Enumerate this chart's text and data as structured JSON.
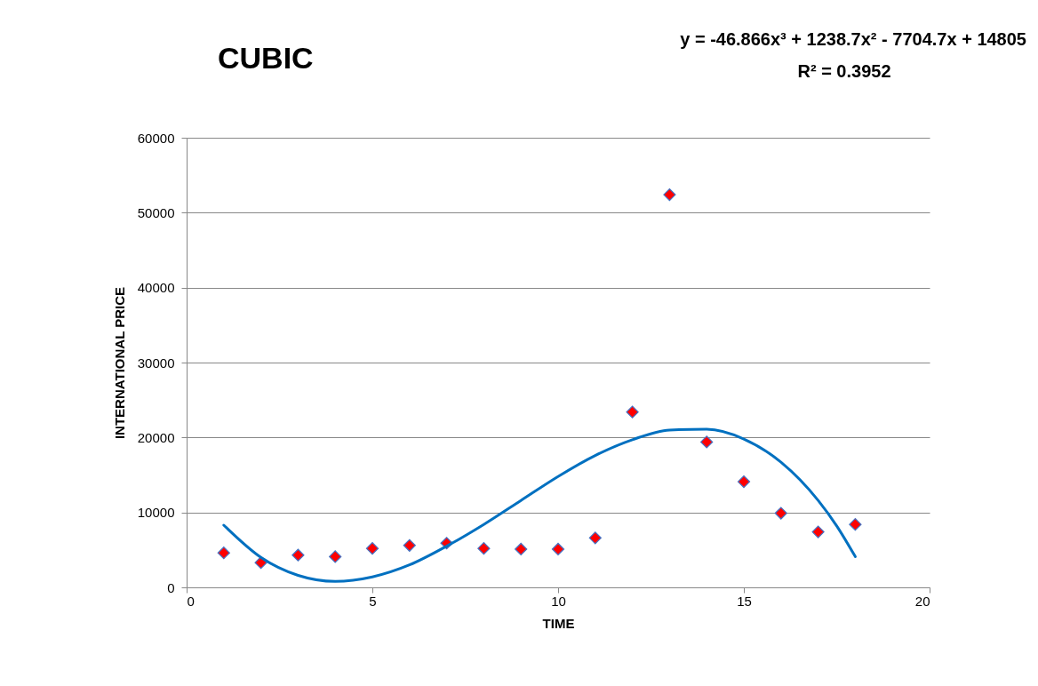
{
  "chart_data": {
    "type": "scatter",
    "title": "CUBIC",
    "xlabel": "TIME",
    "ylabel": "INTERNATIONAL PRICE",
    "annotations": [
      "y = -46.866x³ + 1238.7x² - 7704.7x + 14805",
      "R² = 0.3952"
    ],
    "xlim": [
      0,
      20
    ],
    "xticks": [
      0,
      5,
      10,
      15,
      20
    ],
    "ylim": [
      0,
      60000
    ],
    "yticks": [
      0,
      10000,
      20000,
      30000,
      40000,
      50000,
      60000
    ],
    "grid": "y",
    "series": [
      {
        "color": "#ff0000",
        "marker": "diamond",
        "x": [
          1,
          2,
          3,
          4,
          5,
          6,
          7,
          8,
          9,
          10,
          11,
          12,
          13,
          14,
          15,
          16,
          17,
          18
        ],
        "values": [
          4600,
          3300,
          4300,
          4100,
          5200,
          5600,
          5900,
          5200,
          5100,
          5100,
          6600,
          23400,
          52400,
          19400,
          14100,
          9900,
          7400,
          8400
        ]
      },
      {
        "type": "line",
        "color": "#0070c0",
        "line_style": "solid",
        "marker": "none",
        "x": [
          1,
          2,
          3,
          4,
          5,
          6,
          7,
          8,
          9,
          10,
          11,
          12,
          13,
          14,
          15,
          16,
          17,
          17.5,
          18
        ],
        "values": [
          8300,
          4000,
          1600,
          800,
          1400,
          3000,
          5500,
          8400,
          11600,
          14800,
          17600,
          19700,
          21000,
          21100,
          19800,
          16700,
          11600,
          8200,
          4100
        ]
      }
    ]
  }
}
